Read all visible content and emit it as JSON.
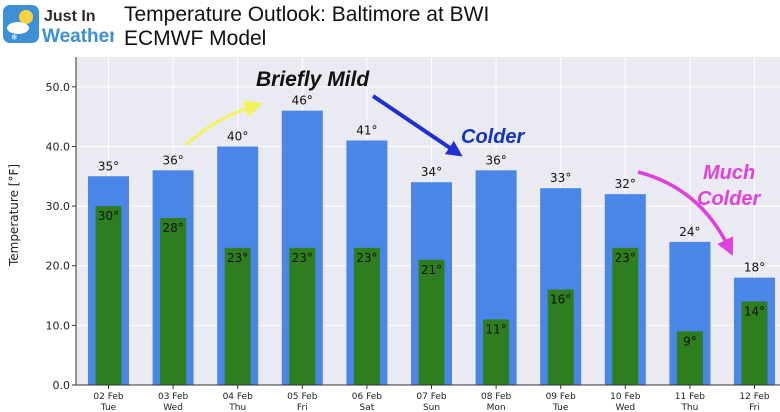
{
  "header": {
    "logo_line1": "Just In",
    "logo_line2": "Weather",
    "title": "Temperature Outlook: Baltimore at BWI",
    "subtitle": "ECMWF Model"
  },
  "annotations": {
    "briefly_mild": "Briefly Mild",
    "colder": "Colder",
    "much_colder_line1": "Much",
    "much_colder_line2": "Colder"
  },
  "colors": {
    "high": "#4a86e8",
    "low": "#2e7d1e",
    "plot_bg": "#eaeaf2",
    "arrow_mild": "#f2f25a",
    "arrow_colder": "#1f2ed6",
    "arrow_much_colder": "#e040e0"
  },
  "chart_data": {
    "type": "bar",
    "ylabel": "Temperature [°F]",
    "ylim": [
      0,
      55
    ],
    "yticks": [
      "0.0",
      "10.0",
      "20.0",
      "30.0",
      "40.0",
      "50.0"
    ],
    "grid": true,
    "categories": [
      {
        "date": "02 Feb",
        "day": "Tue"
      },
      {
        "date": "03 Feb",
        "day": "Wed"
      },
      {
        "date": "04 Feb",
        "day": "Thu"
      },
      {
        "date": "05 Feb",
        "day": "Fri"
      },
      {
        "date": "06 Feb",
        "day": "Sat"
      },
      {
        "date": "07 Feb",
        "day": "Sun"
      },
      {
        "date": "08 Feb",
        "day": "Mon"
      },
      {
        "date": "09 Feb",
        "day": "Tue"
      },
      {
        "date": "10 Feb",
        "day": "Wed"
      },
      {
        "date": "11 Feb",
        "day": "Thu"
      },
      {
        "date": "12 Feb",
        "day": "Fri"
      }
    ],
    "highs": [
      35,
      36,
      40,
      46,
      41,
      34,
      36,
      33,
      32,
      24,
      18
    ],
    "lows": [
      30,
      28,
      23,
      23,
      23,
      21,
      11,
      16,
      23,
      9,
      14
    ],
    "high_labels": [
      "35°",
      "36°",
      "40°",
      "46°",
      "41°",
      "34°",
      "36°",
      "33°",
      "32°",
      "24°",
      "18°"
    ],
    "low_labels": [
      "30°",
      "28°",
      "23°",
      "23°",
      "23°",
      "21°",
      "11°",
      "16°",
      "23°",
      "9°",
      "14°"
    ]
  }
}
